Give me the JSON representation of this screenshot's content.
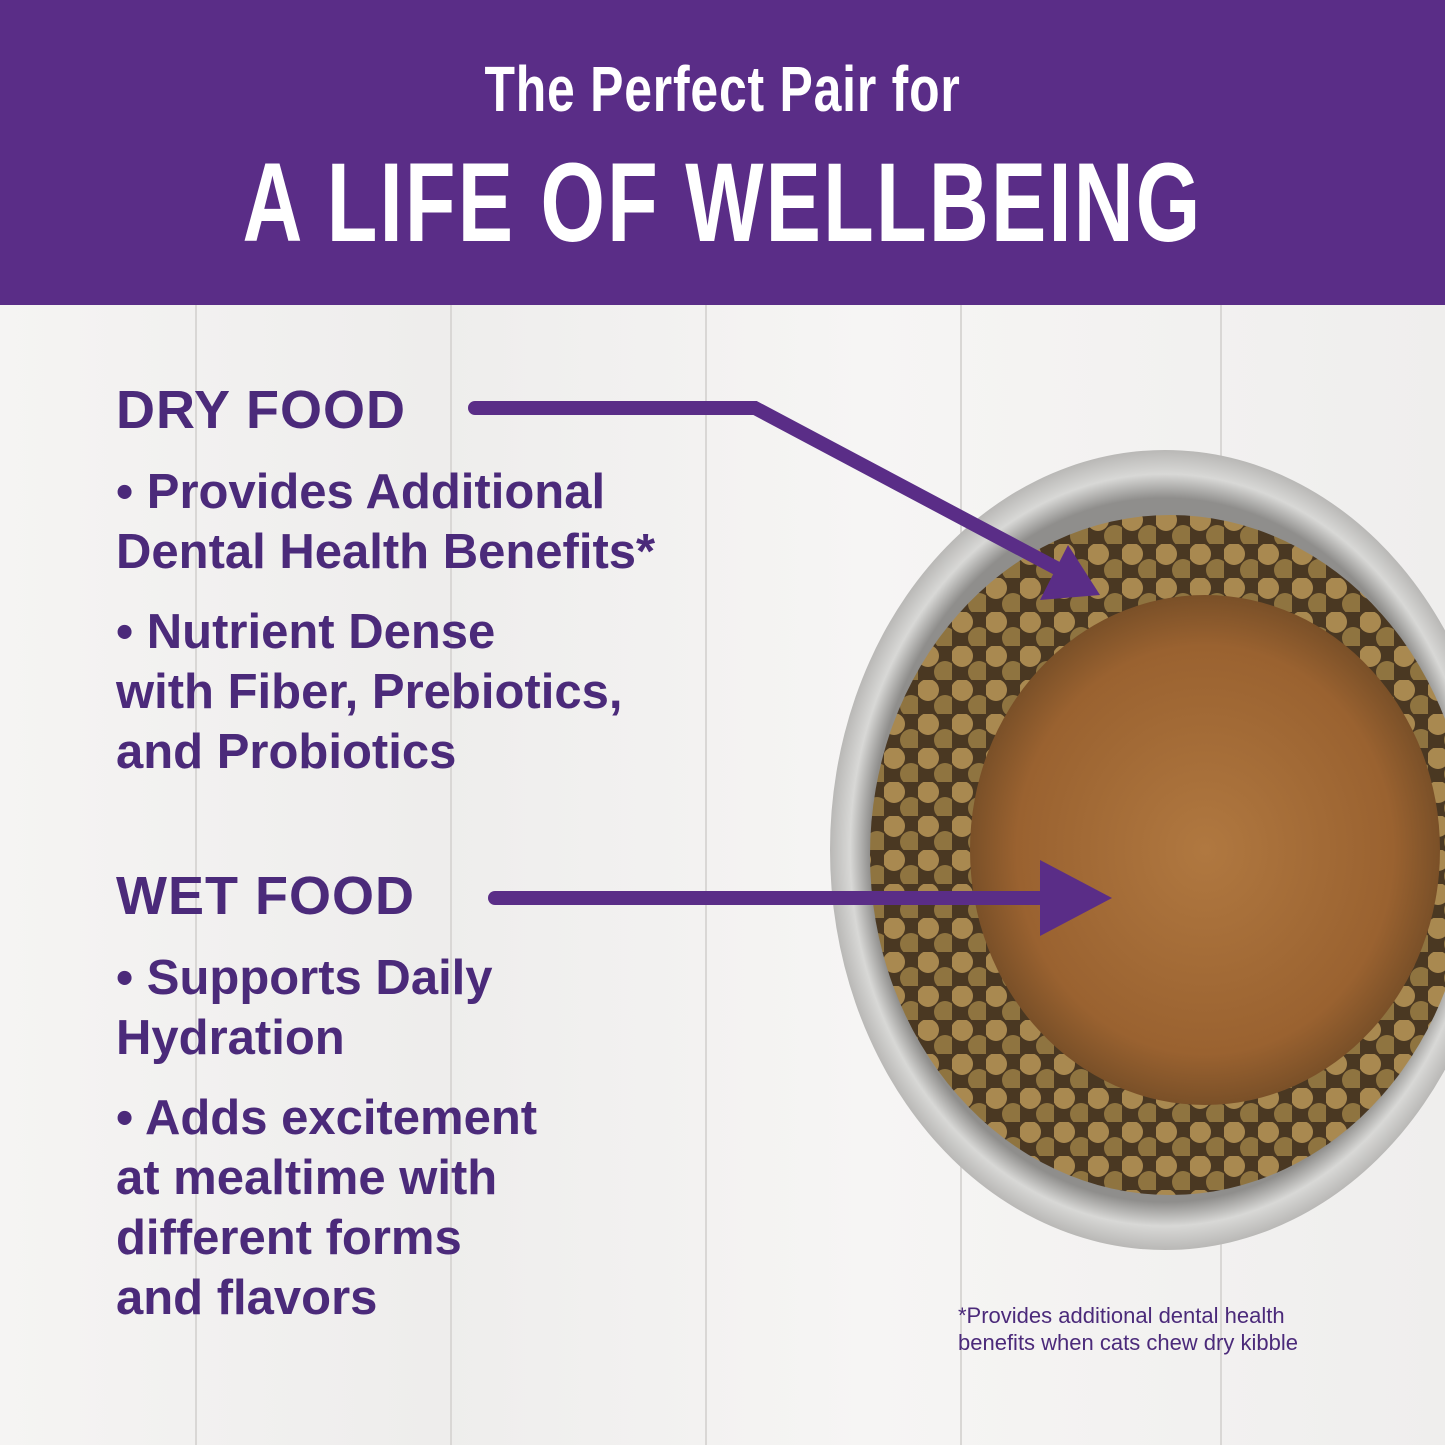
{
  "header": {
    "subtitle": "The Perfect Pair for",
    "title": "A LIFE OF WELLBEING"
  },
  "dry_food": {
    "heading": "DRY FOOD",
    "bullets": [
      [
        "• Provides Additional",
        "Dental Health Benefits*"
      ],
      [
        "• Nutrient Dense",
        "with Fiber, Prebiotics,",
        "and Probiotics"
      ]
    ]
  },
  "wet_food": {
    "heading": "WET FOOD",
    "bullets": [
      [
        "• Supports Daily",
        "Hydration"
      ],
      [
        "• Adds excitement",
        "at mealtime with",
        "different forms",
        "and flavors"
      ]
    ]
  },
  "footnote": [
    "*Provides additional dental health",
    "benefits when cats chew dry kibble"
  ],
  "colors": {
    "brand_purple": "#5a2d87",
    "text_purple": "#4b2a7a"
  }
}
